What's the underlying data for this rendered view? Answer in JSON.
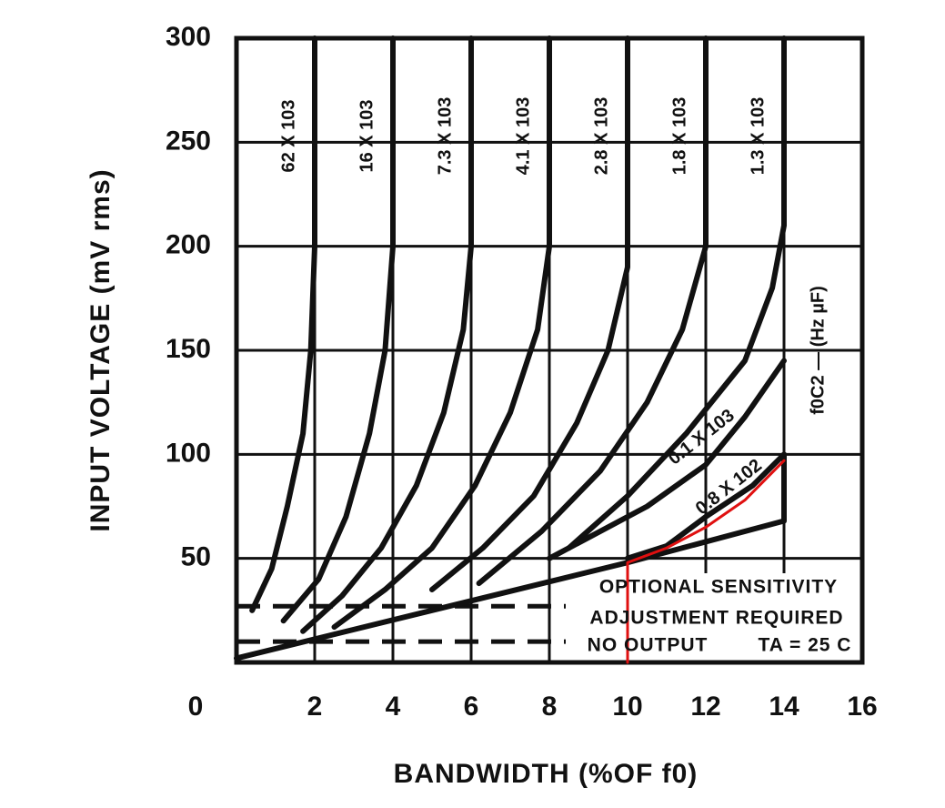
{
  "chart_data": {
    "type": "line",
    "xlabel": "BANDWIDTH (%OF f0)",
    "ylabel": "INPUT VOLTAGE (mV rms)",
    "xlim": [
      0,
      16
    ],
    "xticks": [
      0,
      2,
      4,
      6,
      8,
      10,
      12,
      14,
      16
    ],
    "ylim": [
      0,
      300
    ],
    "yticks": [
      50,
      100,
      150,
      200,
      250,
      300
    ],
    "grid": true,
    "side_label": "f0C2 — (Hz µF)",
    "series": [
      {
        "name": "62 X 103",
        "color": "#111111",
        "x": [
          2,
          2,
          1.9,
          1.7,
          1.3,
          0.9,
          0.4
        ],
        "values": [
          300,
          200,
          150,
          110,
          75,
          45,
          25
        ]
      },
      {
        "name": "16 X 103",
        "color": "#111111",
        "x": [
          4,
          4,
          3.8,
          3.4,
          2.8,
          2.1,
          1.2
        ],
        "values": [
          300,
          200,
          150,
          110,
          70,
          40,
          20
        ]
      },
      {
        "name": "7.3 X 103",
        "color": "#111111",
        "x": [
          6,
          6,
          5.8,
          5.3,
          4.6,
          3.7,
          2.7,
          1.7
        ],
        "values": [
          300,
          200,
          160,
          120,
          85,
          55,
          32,
          15
        ]
      },
      {
        "name": "4.1 X 103",
        "color": "#111111",
        "x": [
          8,
          8,
          7.7,
          7,
          6.1,
          5,
          3.8,
          2.5
        ],
        "values": [
          300,
          200,
          160,
          120,
          85,
          55,
          35,
          17
        ]
      },
      {
        "name": "2.8 X 103",
        "color": "#111111",
        "x": [
          10,
          10,
          9.5,
          8.7,
          7.6,
          6.3,
          5
        ],
        "values": [
          300,
          190,
          150,
          115,
          80,
          55,
          35
        ]
      },
      {
        "name": "1.8 X 103",
        "color": "#111111",
        "x": [
          12,
          12,
          11.4,
          10.5,
          9.3,
          7.8,
          6.2
        ],
        "values": [
          300,
          200,
          160,
          125,
          92,
          63,
          38
        ]
      },
      {
        "name": "1.3 X 103",
        "color": "#111111",
        "x": [
          14,
          14,
          13.7,
          13,
          11.5,
          10,
          8.5
        ],
        "values": [
          300,
          210,
          180,
          145,
          110,
          80,
          55
        ]
      },
      {
        "name": "0.1 X 103",
        "color": "#111111",
        "x": [
          14,
          13,
          12,
          10.5,
          9,
          8
        ],
        "values": [
          145,
          118,
          95,
          75,
          60,
          50
        ]
      },
      {
        "name": "0.8 X 102",
        "color": "#111111",
        "x": [
          14,
          13.2,
          12,
          11,
          10
        ],
        "values": [
          100,
          85,
          70,
          56,
          50
        ]
      },
      {
        "color": "#111111",
        "x": [
          0,
          10,
          14,
          14
        ],
        "values": [
          2,
          48,
          68,
          100
        ]
      },
      {
        "color": "#e01010",
        "x": [
          10,
          10,
          11,
          12,
          13,
          14
        ],
        "values": [
          0,
          48,
          55,
          65,
          78,
          97
        ]
      }
    ],
    "thresholds": [
      27,
      10
    ],
    "annotations": [
      "OPTIONAL SENSITIVITY",
      "ADJUSTMENT REQUIRED",
      "NO OUTPUT",
      "TA = 25 C"
    ]
  }
}
